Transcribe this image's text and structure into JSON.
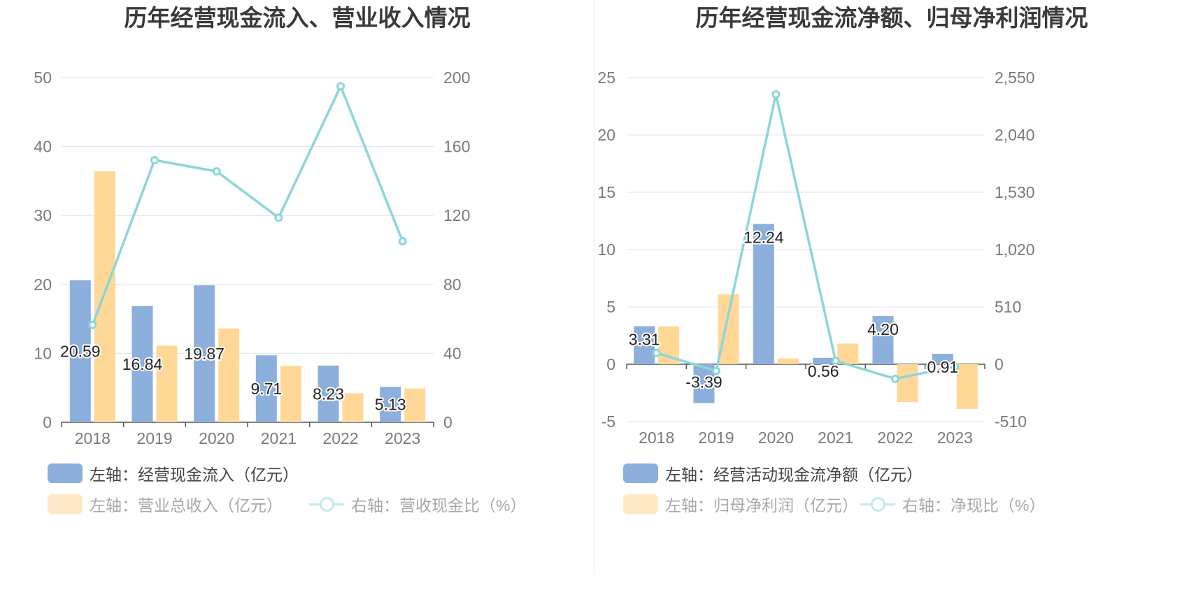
{
  "colors": {
    "bar_primary": "#8DAFDC",
    "bar_secondary": "#FFD898",
    "line": "#8CD6D9",
    "grid": "#dde3f0",
    "axis": "#555555"
  },
  "chart_data": [
    {
      "type": "bar+line",
      "title": "历年经营现金流入、营业收入情况",
      "categories": [
        "2018",
        "2019",
        "2020",
        "2021",
        "2022",
        "2023"
      ],
      "y_left": {
        "min": 0,
        "max": 50,
        "ticks": [
          "0",
          "10",
          "20",
          "30",
          "40",
          "50"
        ]
      },
      "y_right": {
        "min": 0,
        "max": 200,
        "ticks": [
          "0",
          "40",
          "80",
          "120",
          "160",
          "200"
        ]
      },
      "series": [
        {
          "name": "左轴：经营现金流入（亿元）",
          "type": "bar",
          "axis": "left",
          "values": [
            20.59,
            16.84,
            19.87,
            9.71,
            8.23,
            5.13
          ],
          "labels": [
            "20.59",
            "16.84",
            "19.87",
            "9.71",
            "8.23",
            "5.13"
          ],
          "legend_active": true
        },
        {
          "name": "左轴：营业总收入（亿元）",
          "type": "bar",
          "axis": "left",
          "values": [
            36.4,
            11.1,
            13.6,
            8.2,
            4.2,
            4.9
          ],
          "legend_active": false
        },
        {
          "name": "右轴：营收现金比（%）",
          "type": "line",
          "axis": "right",
          "values": [
            56.5,
            152.1,
            145.6,
            118.7,
            195.0,
            105.0
          ],
          "legend_active": false
        }
      ]
    },
    {
      "type": "bar+line",
      "title": "历年经营现金流净额、归母净利润情况",
      "categories": [
        "2018",
        "2019",
        "2020",
        "2021",
        "2022",
        "2023"
      ],
      "y_left": {
        "min": -5,
        "max": 25,
        "ticks": [
          "-5",
          "0",
          "5",
          "10",
          "15",
          "20",
          "25"
        ]
      },
      "y_right": {
        "min": -510,
        "max": 2550,
        "ticks": [
          "-510",
          "0",
          "510",
          "1,020",
          "1,530",
          "2,040",
          "2,550"
        ]
      },
      "series": [
        {
          "name": "左轴：经营活动现金流净额（亿元）",
          "type": "bar",
          "axis": "left",
          "values": [
            3.31,
            -3.39,
            12.24,
            0.56,
            4.2,
            0.91
          ],
          "labels": [
            "3.31",
            "-3.39",
            "12.24",
            "0.56",
            "4.20",
            "0.91"
          ],
          "legend_active": true
        },
        {
          "name": "左轴：归母净利润（亿元）",
          "type": "bar",
          "axis": "left",
          "values": [
            3.3,
            6.1,
            0.5,
            1.8,
            -3.3,
            -3.9
          ],
          "legend_active": false
        },
        {
          "name": "右轴：净现比（%）",
          "type": "line",
          "axis": "right",
          "values": [
            100,
            -60,
            2400,
            30,
            -130,
            -20
          ],
          "legend_active": false
        }
      ]
    }
  ]
}
